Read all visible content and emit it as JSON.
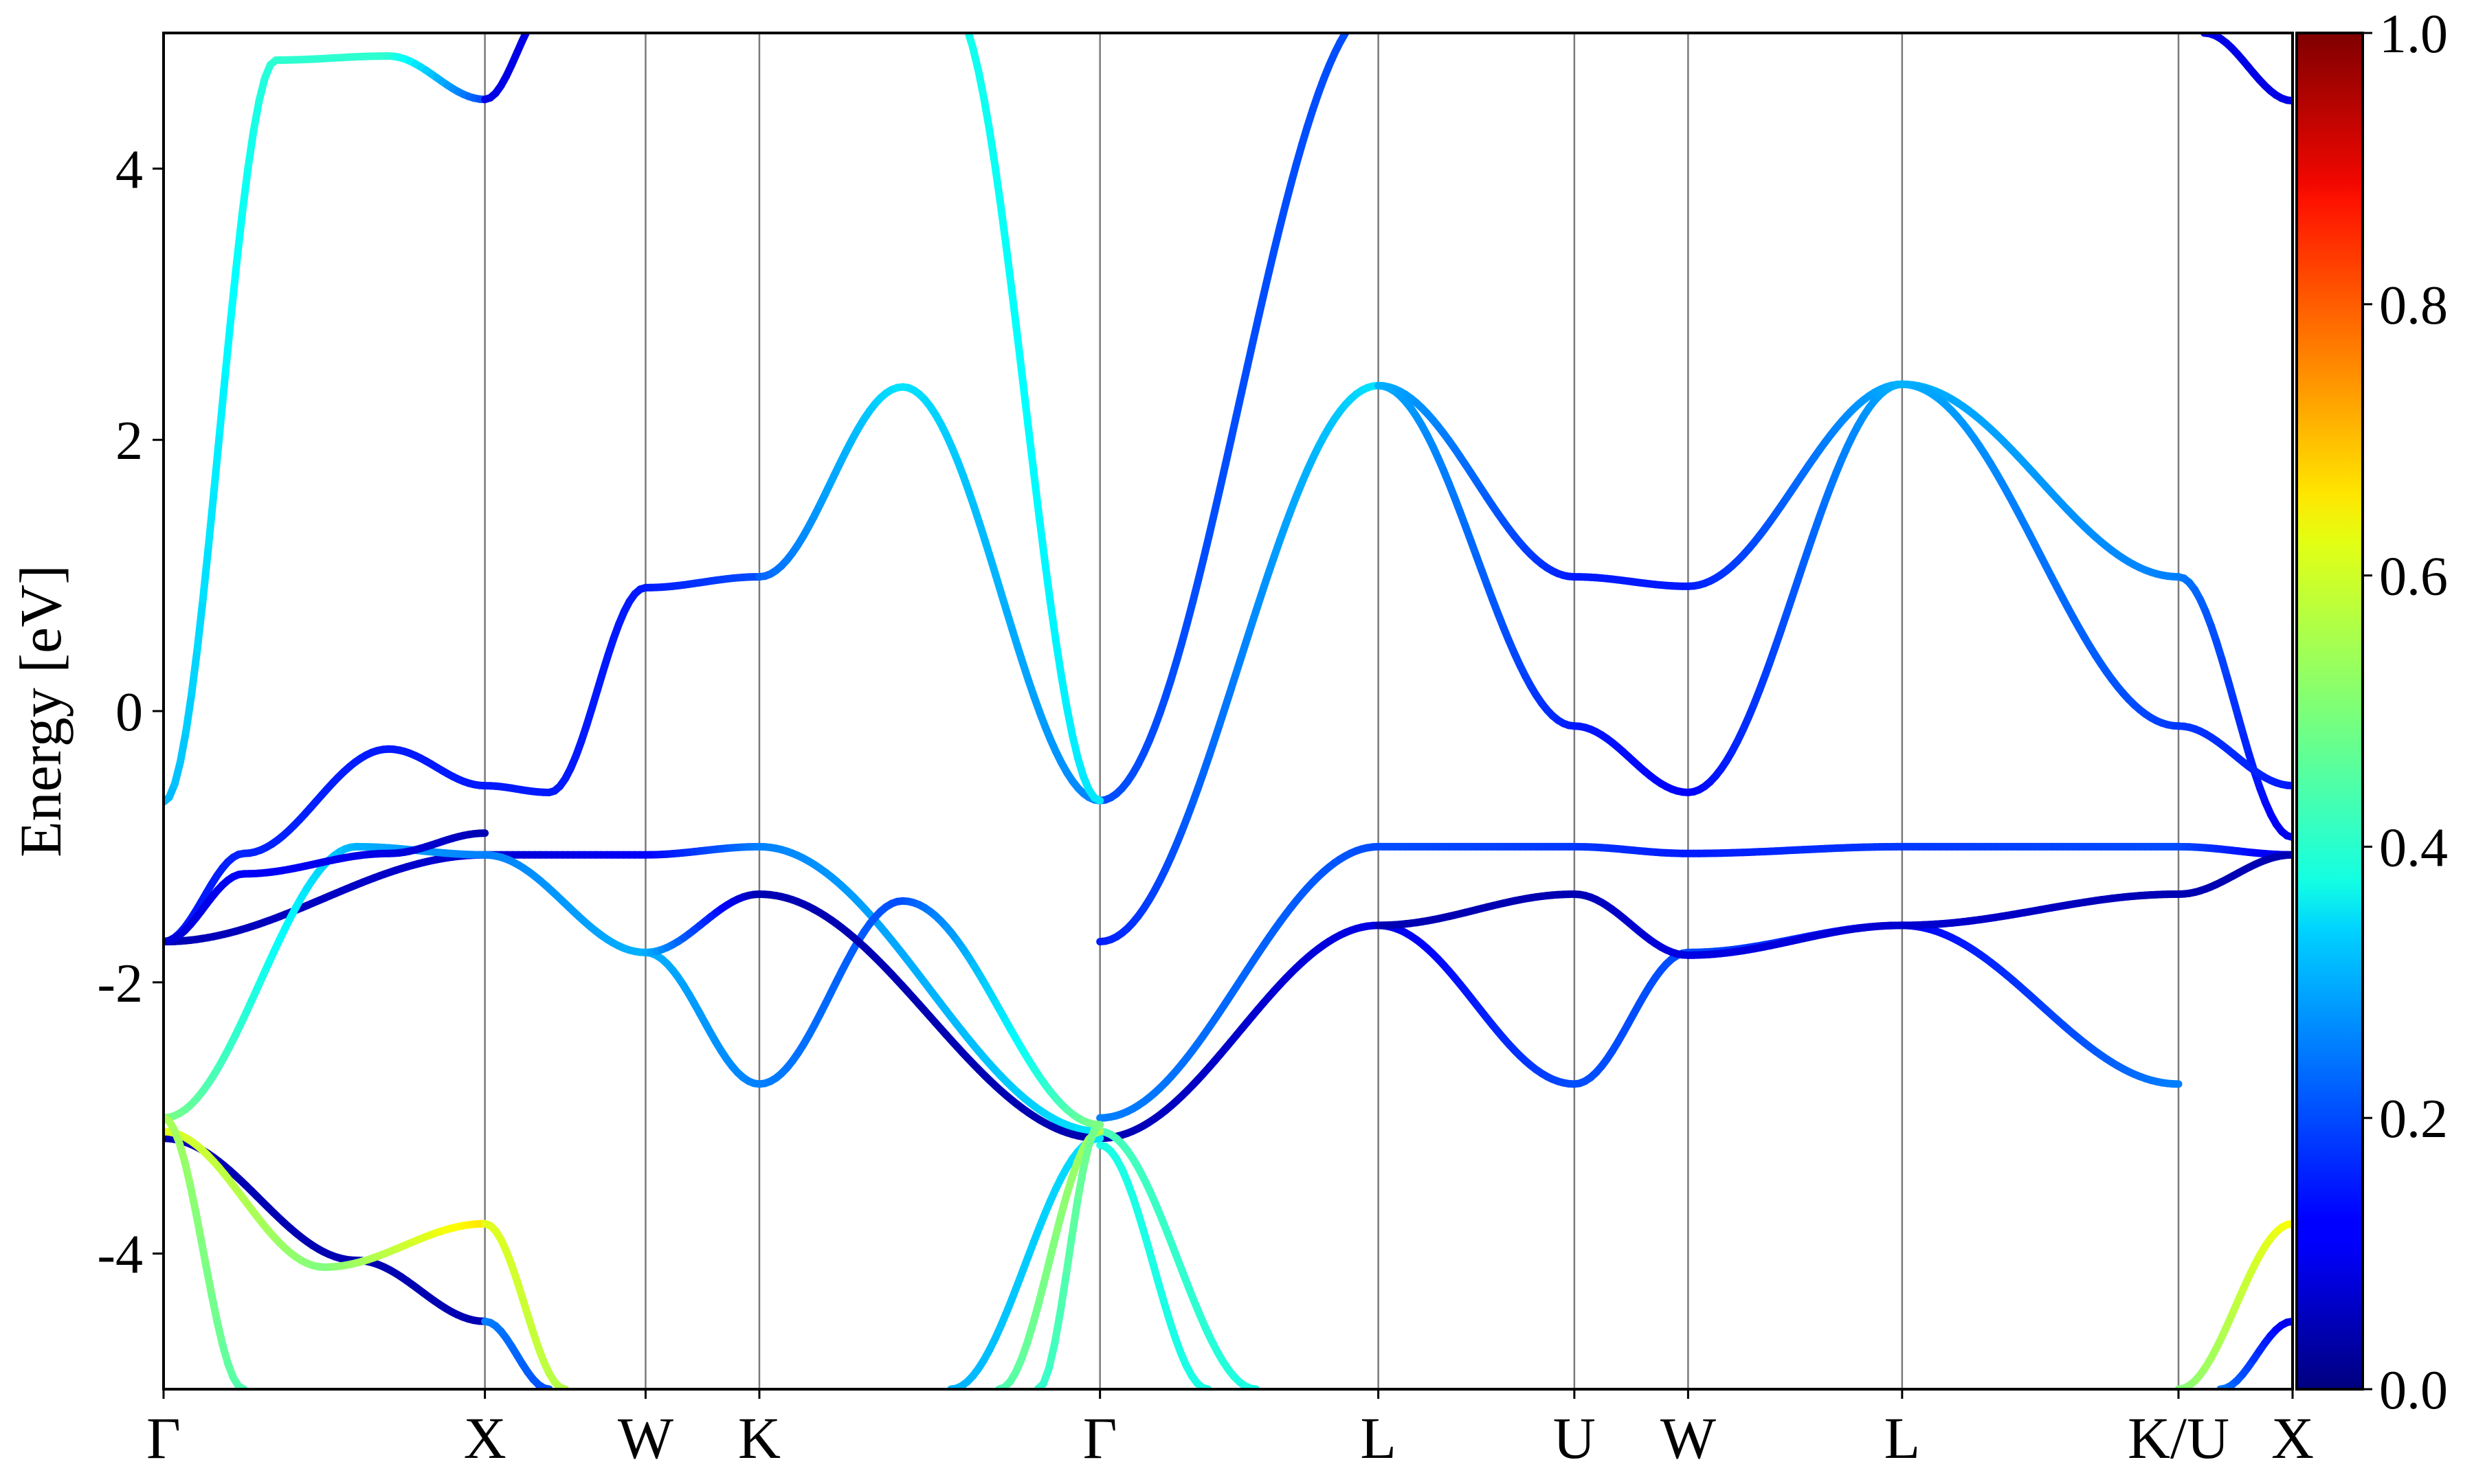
{
  "chart_data": {
    "type": "line",
    "title": "",
    "xlabel": "",
    "ylabel": "Energy [eV]",
    "ylim": [
      -5,
      5
    ],
    "yticks": [
      -4,
      -2,
      0,
      2,
      4
    ],
    "grid": "vertical lines at high-symmetry points",
    "kpath": {
      "labels": [
        "Γ",
        "X",
        "W",
        "K",
        "Γ",
        "L",
        "U",
        "W",
        "L",
        "K/U",
        "X"
      ],
      "positions": [
        0.0,
        1.0,
        1.5,
        1.854,
        2.914,
        3.78,
        4.39,
        4.744,
        5.41,
        6.27,
        6.625
      ]
    },
    "colorbar": {
      "colormap": "jet",
      "range": [
        0.0,
        1.0
      ],
      "ticks": [
        "0.0",
        "0.2",
        "0.4",
        "0.6",
        "0.8",
        "1.0"
      ]
    },
    "series": [
      {
        "x": [
          0,
          0.35,
          0.7,
          1.0
        ],
        "y": [
          -0.67,
          4.8,
          4.83,
          4.51
        ],
        "weight": [
          0.3,
          0.42,
          0.42,
          0.2
        ]
      },
      {
        "x": [
          1.0,
          1.2
        ],
        "y": [
          4.51,
          5.2
        ],
        "weight": [
          0.1,
          0.1
        ]
      },
      {
        "x": [
          0,
          0.25,
          0.7,
          1.0,
          1.2,
          1.5,
          1.854
        ],
        "y": [
          -1.7,
          -1.05,
          -0.28,
          -0.55,
          -0.6,
          0.91,
          0.99
        ],
        "weight": [
          0.14,
          0.16,
          0.15,
          0.15,
          0.15,
          0.15,
          0.2
        ]
      },
      {
        "x": [
          1.854,
          2.3,
          2.914
        ],
        "y": [
          0.99,
          2.39,
          -0.66
        ],
        "weight": [
          0.22,
          0.35,
          0.25
        ]
      },
      {
        "x": [
          2.914,
          3.78
        ],
        "y": [
          -1.7,
          2.4
        ],
        "weight": [
          0.15,
          0.35
        ]
      },
      {
        "x": [
          2.914,
          3.78
        ],
        "y": [
          -0.66,
          5.2
        ],
        "weight": [
          0.2,
          0.2
        ]
      },
      {
        "x": [
          3.78,
          4.39,
          4.744,
          5.41
        ],
        "y": [
          2.4,
          -0.11,
          -0.6,
          2.41
        ],
        "weight": [
          0.3,
          0.15,
          0.12,
          0.3
        ]
      },
      {
        "x": [
          3.78,
          4.39,
          4.744,
          5.41
        ],
        "y": [
          2.4,
          0.99,
          0.92,
          2.41
        ],
        "weight": [
          0.3,
          0.15,
          0.15,
          0.3
        ]
      },
      {
        "x": [
          5.41,
          6.27,
          6.625
        ],
        "y": [
          2.41,
          0.99,
          -0.93
        ],
        "weight": [
          0.3,
          0.25,
          0.1
        ]
      },
      {
        "x": [
          5.41,
          6.27,
          6.625
        ],
        "y": [
          2.41,
          -0.11,
          -0.55
        ],
        "weight": [
          0.3,
          0.18,
          0.15
        ]
      },
      {
        "x": [
          2.45,
          2.914
        ],
        "y": [
          5.2,
          -0.66
        ],
        "weight": [
          0.4,
          0.35
        ]
      },
      {
        "x": [
          0,
          1.0,
          1.5,
          1.854,
          2.914
        ],
        "y": [
          -1.7,
          -1.06,
          -1.06,
          -1.0,
          -3.1
        ],
        "weight": [
          0.05,
          0.08,
          0.12,
          0.25,
          0.35
        ]
      },
      {
        "x": [
          2.914,
          3.78,
          4.39,
          4.744,
          5.41,
          6.27,
          6.625
        ],
        "y": [
          -3.0,
          -1.0,
          -1.0,
          -1.05,
          -1.0,
          -1.0,
          -1.06
        ],
        "weight": [
          0.25,
          0.2,
          0.18,
          0.15,
          0.18,
          0.2,
          0.1
        ]
      },
      {
        "x": [
          0,
          0.6,
          1.0,
          1.5,
          1.854,
          2.3,
          2.914
        ],
        "y": [
          -3.0,
          -1.0,
          -1.06,
          -1.78,
          -2.75,
          -1.4,
          -3.05
        ],
        "weight": [
          0.5,
          0.3,
          0.25,
          0.3,
          0.25,
          0.2,
          0.5
        ]
      },
      {
        "x": [
          1.5,
          1.854,
          2.914
        ],
        "y": [
          -1.78,
          -1.35,
          -3.15
        ],
        "weight": [
          0.3,
          0.05,
          0.05
        ]
      },
      {
        "x": [
          0,
          0.25,
          0.7,
          1.0
        ],
        "y": [
          -1.7,
          -1.2,
          -1.05,
          -0.9
        ],
        "weight": [
          0.08,
          0.12,
          0.1,
          0.05
        ]
      },
      {
        "x": [
          2.914,
          3.78,
          4.39,
          4.744,
          5.41,
          6.27
        ],
        "y": [
          -3.15,
          -1.58,
          -2.75,
          -1.78,
          -1.58,
          -2.75
        ],
        "weight": [
          0.05,
          0.1,
          0.2,
          0.2,
          0.12,
          0.25
        ]
      },
      {
        "x": [
          3.78,
          4.39,
          4.744,
          5.41,
          6.27,
          6.625
        ],
        "y": [
          -1.58,
          -1.35,
          -1.8,
          -1.58,
          -1.35,
          -1.06
        ],
        "weight": [
          0.05,
          0.05,
          0.1,
          0.08,
          0.05,
          0.05
        ]
      },
      {
        "x": [
          0,
          0.6,
          1.0
        ],
        "y": [
          -3.15,
          -4.05,
          -4.5
        ],
        "weight": [
          0.05,
          0.05,
          0.05
        ]
      },
      {
        "x": [
          0,
          0.5,
          1.0
        ],
        "y": [
          -3.1,
          -4.1,
          -3.78
        ],
        "weight": [
          0.6,
          0.5,
          0.65
        ]
      },
      {
        "x": [
          1.0,
          1.25
        ],
        "y": [
          -3.78,
          -5.0
        ],
        "weight": [
          0.6,
          0.55
        ]
      },
      {
        "x": [
          1.0,
          1.2
        ],
        "y": [
          -4.5,
          -5.0
        ],
        "weight": [
          0.25,
          0.2
        ]
      },
      {
        "x": [
          0,
          0.25
        ],
        "y": [
          -3.0,
          -5.0
        ],
        "weight": [
          0.55,
          0.45
        ]
      },
      {
        "x": [
          2.914,
          3.4
        ],
        "y": [
          -3.1,
          -5.0
        ],
        "weight": [
          0.45,
          0.4
        ]
      },
      {
        "x": [
          2.914,
          3.25
        ],
        "y": [
          -3.2,
          -5.0
        ],
        "weight": [
          0.4,
          0.4
        ]
      },
      {
        "x": [
          2.914,
          2.45
        ],
        "y": [
          -3.15,
          -5.0
        ],
        "weight": [
          0.35,
          0.3
        ]
      },
      {
        "x": [
          2.914,
          2.6
        ],
        "y": [
          -3.1,
          -5.0
        ],
        "weight": [
          0.55,
          0.45
        ]
      },
      {
        "x": [
          2.914,
          2.72
        ],
        "y": [
          -3.05,
          -5.0
        ],
        "weight": [
          0.5,
          0.42
        ]
      },
      {
        "x": [
          6.27,
          6.625
        ],
        "y": [
          -5.0,
          -3.78
        ],
        "weight": [
          0.5,
          0.62
        ]
      },
      {
        "x": [
          6.4,
          6.625
        ],
        "y": [
          -5.0,
          -4.5
        ],
        "weight": [
          0.25,
          0.1
        ]
      },
      {
        "x": [
          6.35,
          6.625
        ],
        "y": [
          5.0,
          4.5
        ],
        "weight": [
          0.1,
          0.1
        ]
      }
    ]
  }
}
